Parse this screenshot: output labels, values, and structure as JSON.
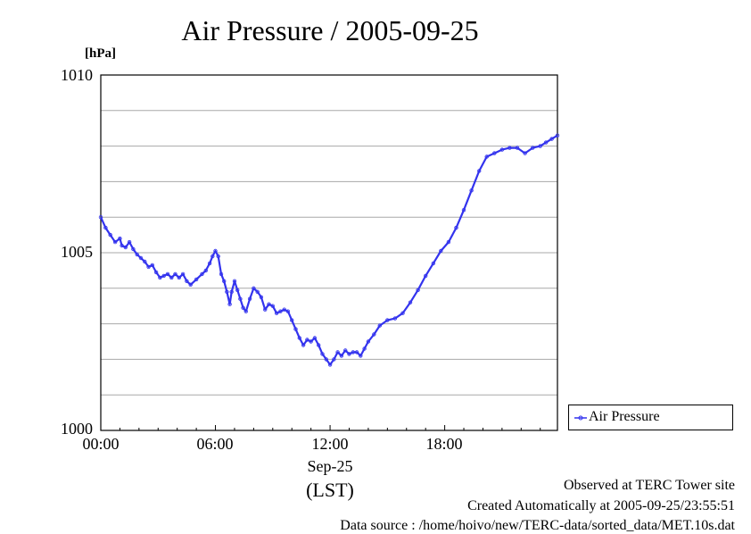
{
  "chart_data": {
    "type": "line",
    "title": "Air Pressure / 2005-09-25",
    "ylabel": "[hPa]",
    "ylim": [
      1000,
      1010
    ],
    "yticks": [
      {
        "value": 1000,
        "label": "1000"
      },
      {
        "value": 1005,
        "label": "1005"
      },
      {
        "value": 1010,
        "label": "1010"
      }
    ],
    "xlim": [
      0,
      23.9
    ],
    "xticks": [
      {
        "value": 0,
        "label": "00:00"
      },
      {
        "value": 6,
        "label": "06:00"
      },
      {
        "value": 12,
        "label": "12:00"
      },
      {
        "value": 18,
        "label": "18:00"
      }
    ],
    "xlabel_date": "Sep-25",
    "xlabel_tz": "(LST)",
    "grid": true,
    "legend": "right",
    "series": [
      {
        "name": "Air Pressure",
        "color": "#3333ee",
        "x": [
          0.0,
          0.25,
          0.5,
          0.75,
          1.0,
          1.1,
          1.3,
          1.5,
          1.7,
          1.9,
          2.1,
          2.3,
          2.5,
          2.7,
          2.9,
          3.1,
          3.3,
          3.5,
          3.7,
          3.9,
          4.1,
          4.3,
          4.5,
          4.7,
          5.0,
          5.3,
          5.5,
          5.7,
          5.85,
          6.0,
          6.15,
          6.3,
          6.45,
          6.6,
          6.75,
          6.85,
          7.0,
          7.15,
          7.3,
          7.45,
          7.6,
          7.8,
          8.0,
          8.2,
          8.4,
          8.6,
          8.8,
          9.0,
          9.2,
          9.4,
          9.6,
          9.8,
          10.0,
          10.2,
          10.4,
          10.6,
          10.8,
          11.0,
          11.2,
          11.4,
          11.6,
          11.8,
          12.0,
          12.2,
          12.4,
          12.6,
          12.8,
          13.0,
          13.2,
          13.4,
          13.6,
          13.8,
          14.0,
          14.3,
          14.6,
          15.0,
          15.4,
          15.8,
          16.2,
          16.6,
          17.0,
          17.4,
          17.8,
          18.2,
          18.6,
          19.0,
          19.4,
          19.8,
          20.2,
          20.6,
          21.0,
          21.4,
          21.8,
          22.2,
          22.6,
          23.0,
          23.3,
          23.6,
          23.9
        ],
        "values": [
          1006.0,
          1005.7,
          1005.5,
          1005.3,
          1005.4,
          1005.2,
          1005.15,
          1005.3,
          1005.1,
          1004.95,
          1004.85,
          1004.75,
          1004.6,
          1004.65,
          1004.45,
          1004.3,
          1004.35,
          1004.4,
          1004.3,
          1004.4,
          1004.3,
          1004.4,
          1004.2,
          1004.1,
          1004.25,
          1004.4,
          1004.5,
          1004.7,
          1004.9,
          1005.05,
          1004.9,
          1004.4,
          1004.2,
          1003.9,
          1003.55,
          1003.9,
          1004.2,
          1003.95,
          1003.7,
          1003.45,
          1003.35,
          1003.7,
          1004.0,
          1003.9,
          1003.75,
          1003.4,
          1003.55,
          1003.5,
          1003.3,
          1003.35,
          1003.4,
          1003.35,
          1003.1,
          1002.85,
          1002.6,
          1002.4,
          1002.55,
          1002.5,
          1002.6,
          1002.4,
          1002.15,
          1002.0,
          1001.85,
          1002.0,
          1002.2,
          1002.1,
          1002.25,
          1002.15,
          1002.2,
          1002.2,
          1002.1,
          1002.3,
          1002.5,
          1002.7,
          1002.95,
          1003.1,
          1003.15,
          1003.3,
          1003.6,
          1003.95,
          1004.35,
          1004.7,
          1005.05,
          1005.3,
          1005.7,
          1006.2,
          1006.75,
          1007.3,
          1007.7,
          1007.8,
          1007.9,
          1007.95,
          1007.95,
          1007.8,
          1007.95,
          1008.0,
          1008.1,
          1008.2,
          1008.3
        ]
      }
    ]
  },
  "footer": {
    "observed": "Observed at TERC Tower site",
    "created": "Created Automatically at 2005-09-25/23:55:51",
    "source": "Data source : /home/hoivo/new/TERC-data/sorted_data/MET.10s.dat"
  }
}
